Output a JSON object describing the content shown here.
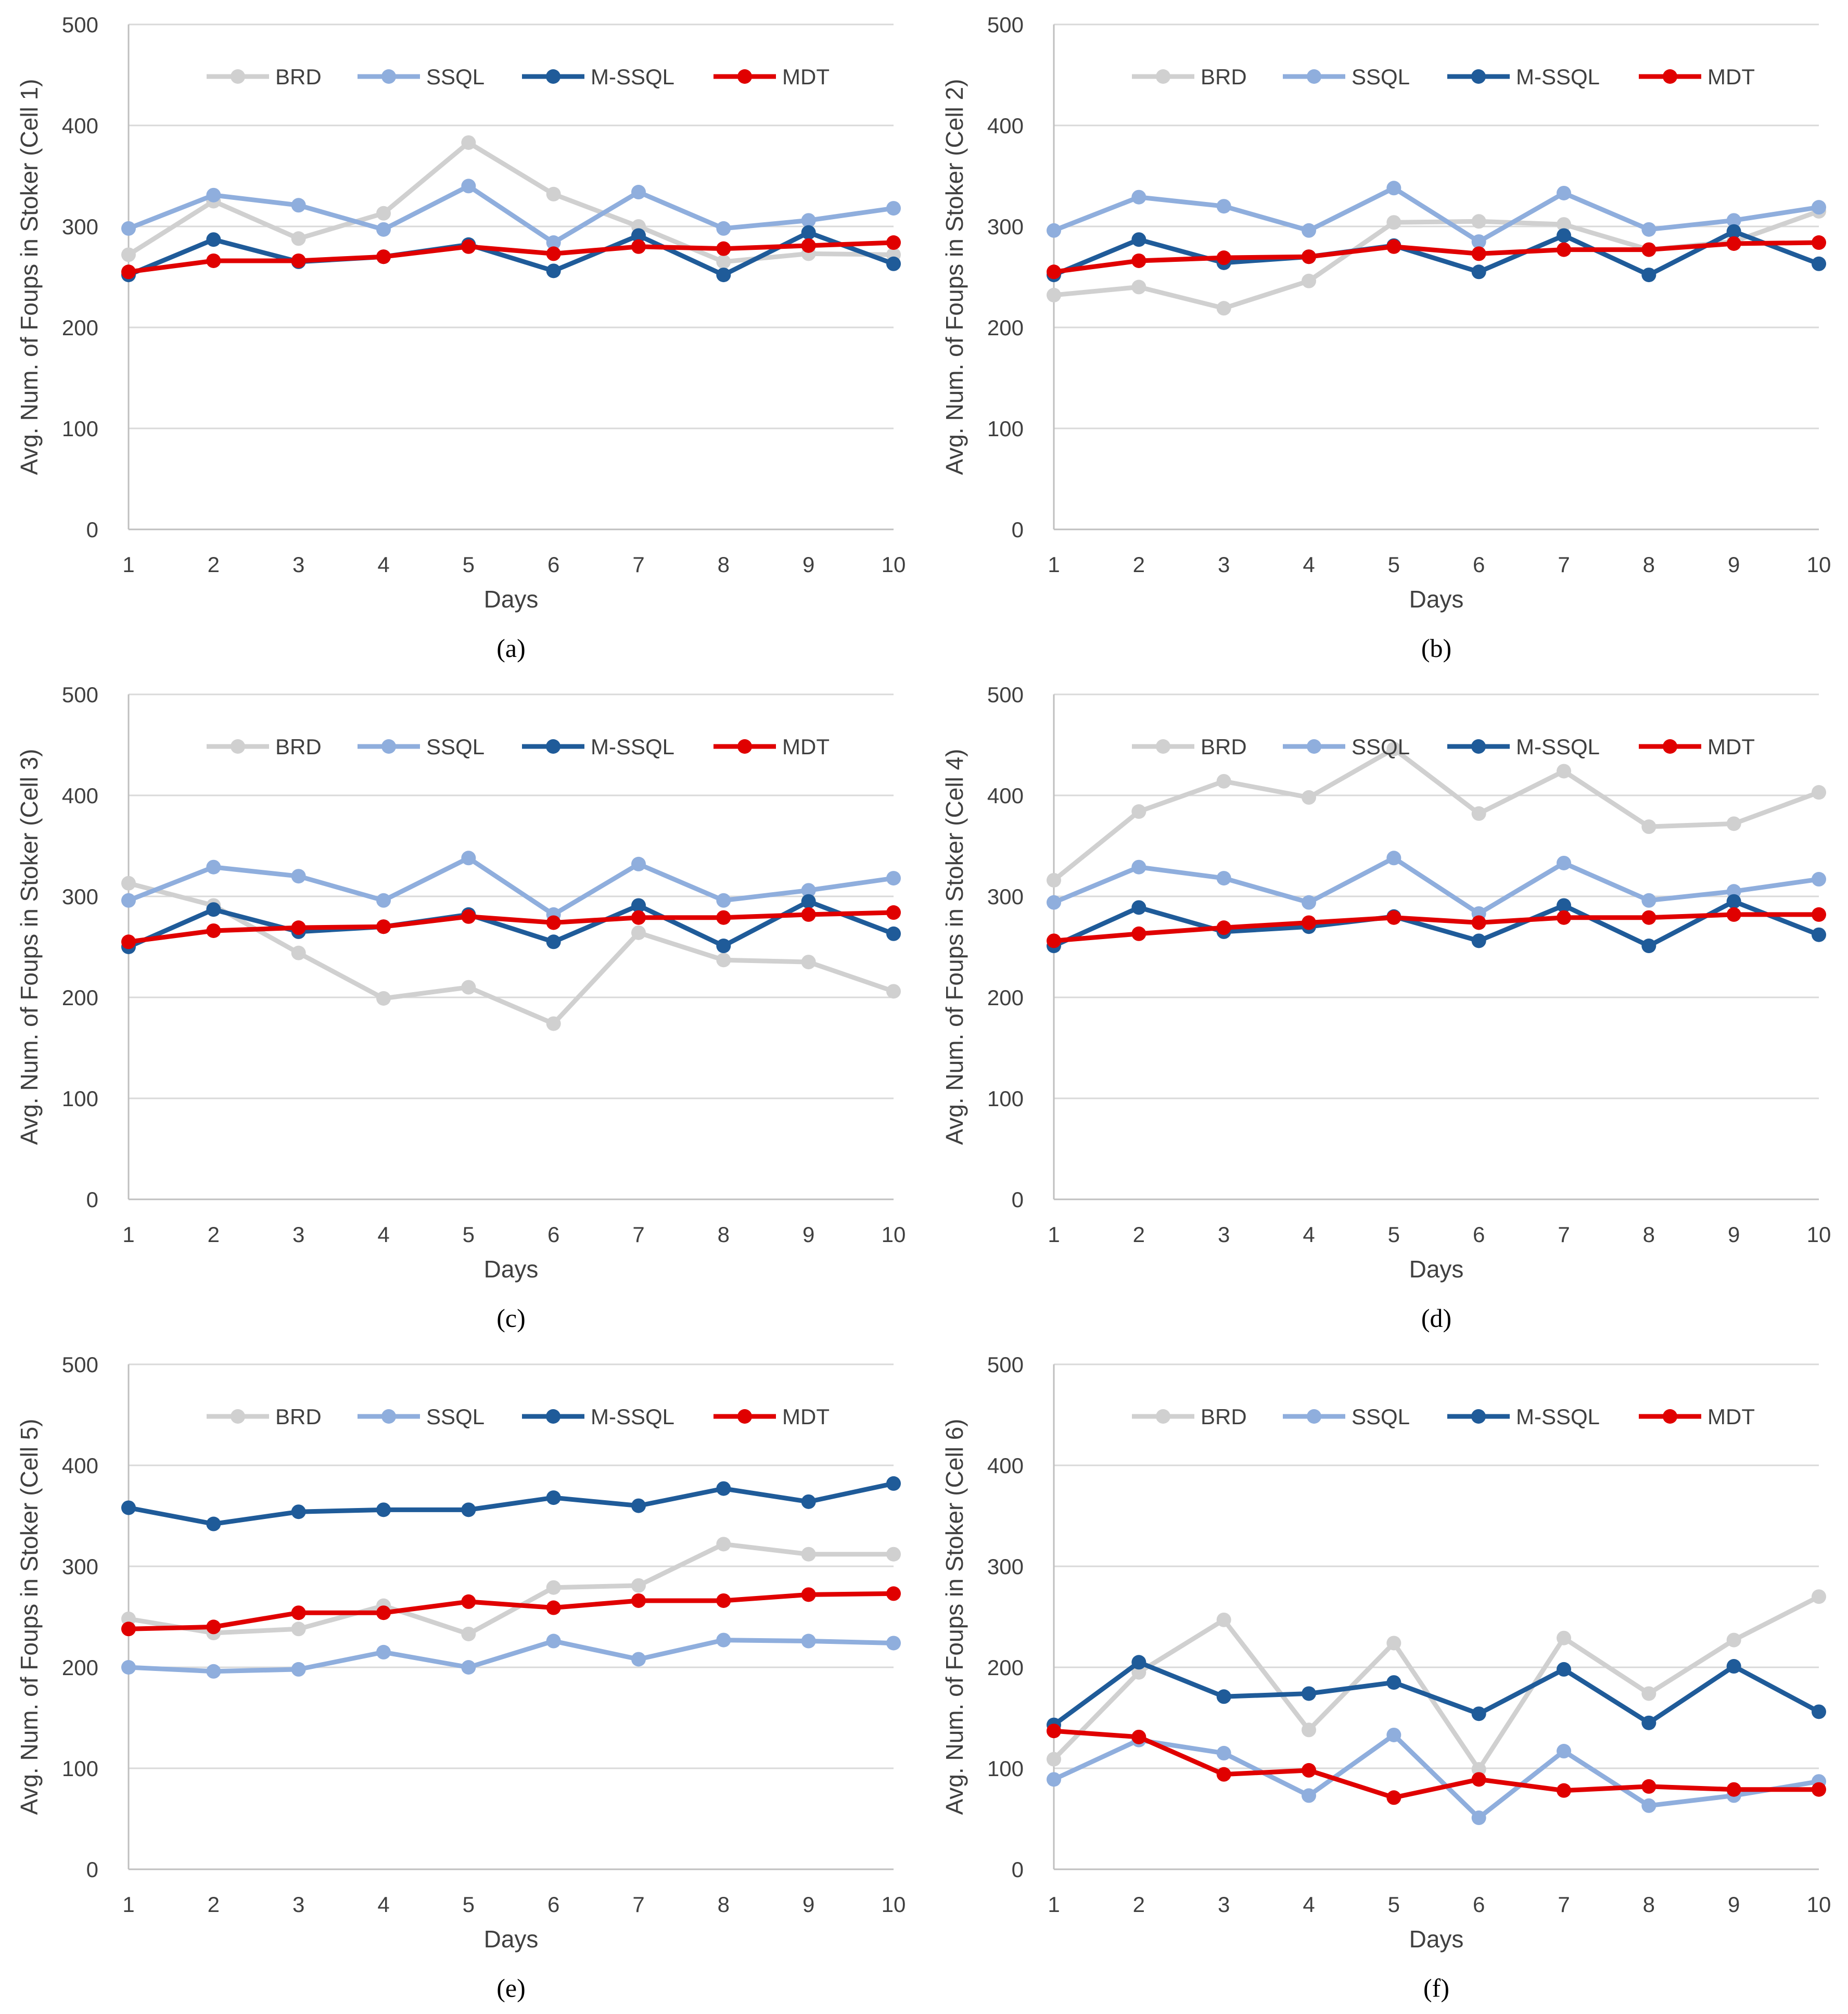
{
  "chart_data": [
    {
      "type": "line",
      "caption": "(a)",
      "xlabel": "Days",
      "ylabel": "Avg. Num. of Foups in Stoker (Cell 1)",
      "x": [
        1,
        2,
        3,
        4,
        5,
        6,
        7,
        8,
        9,
        10
      ],
      "ylim": [
        0,
        500
      ],
      "yticks": [
        0,
        100,
        200,
        300,
        400,
        500
      ],
      "grid": true,
      "legend_position": "top",
      "series": [
        {
          "name": "BRD",
          "color": "#d0d0d0",
          "values": [
            272,
            325,
            288,
            313,
            383,
            332,
            300,
            265,
            273,
            272
          ]
        },
        {
          "name": "SSQL",
          "color": "#8faedd",
          "values": [
            298,
            331,
            321,
            297,
            340,
            284,
            334,
            298,
            306,
            318
          ]
        },
        {
          "name": "M-SSQL",
          "color": "#1f5b99",
          "values": [
            252,
            287,
            265,
            270,
            282,
            256,
            291,
            252,
            294,
            263
          ]
        },
        {
          "name": "MDT",
          "color": "#e00000",
          "values": [
            255,
            266,
            266,
            270,
            280,
            273,
            280,
            278,
            281,
            284
          ]
        }
      ]
    },
    {
      "type": "line",
      "caption": "(b)",
      "xlabel": "Days",
      "ylabel": "Avg. Num. of Foups in Stoker (Cell 2)",
      "x": [
        1,
        2,
        3,
        4,
        5,
        6,
        7,
        8,
        9,
        10
      ],
      "ylim": [
        0,
        500
      ],
      "yticks": [
        0,
        100,
        200,
        300,
        400,
        500
      ],
      "grid": true,
      "legend_position": "top",
      "series": [
        {
          "name": "BRD",
          "color": "#d0d0d0",
          "values": [
            232,
            240,
            219,
            246,
            304,
            305,
            302,
            277,
            285,
            315
          ]
        },
        {
          "name": "SSQL",
          "color": "#8faedd",
          "values": [
            296,
            329,
            320,
            296,
            338,
            285,
            333,
            297,
            306,
            319
          ]
        },
        {
          "name": "M-SSQL",
          "color": "#1f5b99",
          "values": [
            252,
            287,
            264,
            270,
            281,
            255,
            291,
            252,
            295,
            263
          ]
        },
        {
          "name": "MDT",
          "color": "#e00000",
          "values": [
            255,
            266,
            269,
            270,
            280,
            273,
            277,
            277,
            283,
            284
          ]
        }
      ]
    },
    {
      "type": "line",
      "caption": "(c)",
      "xlabel": "Days",
      "ylabel": "Avg. Num. of Foups in Stoker (Cell 3)",
      "x": [
        1,
        2,
        3,
        4,
        5,
        6,
        7,
        8,
        9,
        10
      ],
      "ylim": [
        0,
        500
      ],
      "yticks": [
        0,
        100,
        200,
        300,
        400,
        500
      ],
      "grid": true,
      "legend_position": "top",
      "series": [
        {
          "name": "BRD",
          "color": "#d0d0d0",
          "values": [
            313,
            291,
            244,
            199,
            210,
            174,
            264,
            237,
            235,
            206
          ]
        },
        {
          "name": "SSQL",
          "color": "#8faedd",
          "values": [
            296,
            329,
            320,
            296,
            338,
            282,
            332,
            296,
            306,
            318
          ]
        },
        {
          "name": "M-SSQL",
          "color": "#1f5b99",
          "values": [
            250,
            287,
            265,
            270,
            282,
            255,
            291,
            251,
            295,
            263
          ]
        },
        {
          "name": "MDT",
          "color": "#e00000",
          "values": [
            255,
            266,
            269,
            270,
            280,
            274,
            279,
            279,
            282,
            284
          ]
        }
      ]
    },
    {
      "type": "line",
      "caption": "(d)",
      "xlabel": "Days",
      "ylabel": "Avg. Num. of Foups in Stoker (Cell 4)",
      "x": [
        1,
        2,
        3,
        4,
        5,
        6,
        7,
        8,
        9,
        10
      ],
      "ylim": [
        0,
        500
      ],
      "yticks": [
        0,
        100,
        200,
        300,
        400,
        500
      ],
      "grid": true,
      "legend_position": "top",
      "series": [
        {
          "name": "BRD",
          "color": "#d0d0d0",
          "values": [
            316,
            384,
            414,
            398,
            446,
            382,
            424,
            369,
            372,
            403
          ]
        },
        {
          "name": "SSQL",
          "color": "#8faedd",
          "values": [
            294,
            329,
            318,
            294,
            338,
            283,
            333,
            296,
            305,
            317
          ]
        },
        {
          "name": "M-SSQL",
          "color": "#1f5b99",
          "values": [
            251,
            289,
            265,
            270,
            280,
            256,
            291,
            251,
            295,
            262
          ]
        },
        {
          "name": "MDT",
          "color": "#e00000",
          "values": [
            256,
            263,
            269,
            274,
            279,
            274,
            279,
            279,
            282,
            282
          ]
        }
      ]
    },
    {
      "type": "line",
      "caption": "(e)",
      "xlabel": "Days",
      "ylabel": "Avg. Num. of Foups in Stoker (Cell 5)",
      "x": [
        1,
        2,
        3,
        4,
        5,
        6,
        7,
        8,
        9,
        10
      ],
      "ylim": [
        0,
        500
      ],
      "yticks": [
        0,
        100,
        200,
        300,
        400,
        500
      ],
      "grid": true,
      "legend_position": "top",
      "series": [
        {
          "name": "BRD",
          "color": "#d0d0d0",
          "values": [
            248,
            234,
            238,
            261,
            233,
            279,
            281,
            322,
            312,
            312
          ]
        },
        {
          "name": "SSQL",
          "color": "#8faedd",
          "values": [
            200,
            196,
            198,
            215,
            200,
            226,
            208,
            227,
            226,
            224
          ]
        },
        {
          "name": "M-SSQL",
          "color": "#1f5b99",
          "values": [
            358,
            342,
            354,
            356,
            356,
            368,
            360,
            377,
            364,
            382
          ]
        },
        {
          "name": "MDT",
          "color": "#e00000",
          "values": [
            238,
            240,
            254,
            254,
            265,
            259,
            266,
            266,
            272,
            273
          ]
        }
      ]
    },
    {
      "type": "line",
      "caption": "(f)",
      "xlabel": "Days",
      "ylabel": "Avg. Num. of Foups in Stoker (Cell 6)",
      "x": [
        1,
        2,
        3,
        4,
        5,
        6,
        7,
        8,
        9,
        10
      ],
      "ylim": [
        0,
        500
      ],
      "yticks": [
        0,
        100,
        200,
        300,
        400,
        500
      ],
      "grid": true,
      "legend_position": "top",
      "series": [
        {
          "name": "BRD",
          "color": "#d0d0d0",
          "values": [
            109,
            195,
            247,
            138,
            224,
            99,
            229,
            174,
            227,
            270
          ]
        },
        {
          "name": "SSQL",
          "color": "#8faedd",
          "values": [
            89,
            128,
            115,
            73,
            133,
            51,
            117,
            63,
            73,
            87
          ]
        },
        {
          "name": "M-SSQL",
          "color": "#1f5b99",
          "values": [
            143,
            205,
            171,
            174,
            185,
            154,
            198,
            145,
            201,
            156
          ]
        },
        {
          "name": "MDT",
          "color": "#e00000",
          "values": [
            137,
            131,
            94,
            98,
            71,
            89,
            78,
            82,
            79,
            79
          ]
        }
      ]
    }
  ]
}
